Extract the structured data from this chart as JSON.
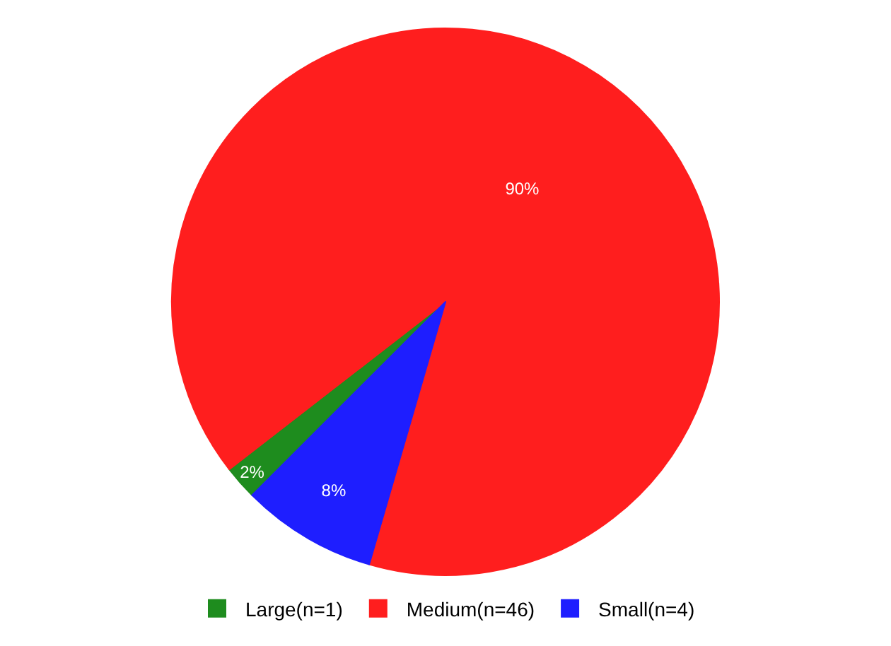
{
  "chart_data": {
    "type": "pie",
    "categories": [
      "Large(n=1)",
      "Medium(n=46)",
      "Small(n=4)"
    ],
    "values": [
      2,
      90,
      8
    ],
    "colors": [
      "#1e8c1e",
      "#ff1e1e",
      "#1e1eff"
    ],
    "value_labels": [
      "2%",
      "90%",
      "8%"
    ],
    "legend": "bottom"
  }
}
